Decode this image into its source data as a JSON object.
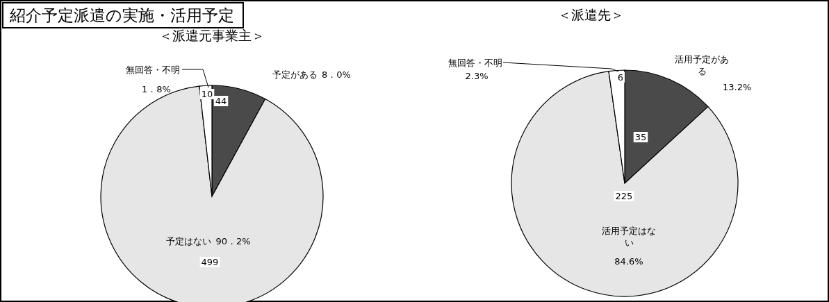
{
  "chart_data": [
    {
      "type": "pie",
      "title": "紹介予定派遣の実施・活用予定",
      "subtitle": "＜派遣元事業主＞",
      "categories": [
        "予定がある",
        "予定はない",
        "無回答・不明"
      ],
      "values": [
        44,
        499,
        10
      ],
      "colors": [
        "#4a4a4a",
        "#e6e6e6",
        "#ffffff"
      ],
      "data_labels": true,
      "annotations": [
        {
          "text": "8．0%",
          "x": "予定がある"
        },
        {
          "text": "90．2%",
          "x": "予定はない"
        },
        {
          "text": "1．8%",
          "x": "無回答・不明"
        }
      ]
    },
    {
      "type": "pie",
      "subtitle": "＜派遣先＞",
      "categories": [
        "活用予定がある",
        "活用予定はない",
        "無回答・不明"
      ],
      "values": [
        35,
        225,
        6
      ],
      "colors": [
        "#4a4a4a",
        "#e6e6e6",
        "#ffffff"
      ],
      "data_labels": true,
      "annotations": [
        {
          "text": "13.2%",
          "x": "活用予定がある"
        },
        {
          "text": "84.6%",
          "x": "活用予定はない"
        },
        {
          "text": "2.3%",
          "x": "無回答・不明"
        }
      ]
    }
  ]
}
